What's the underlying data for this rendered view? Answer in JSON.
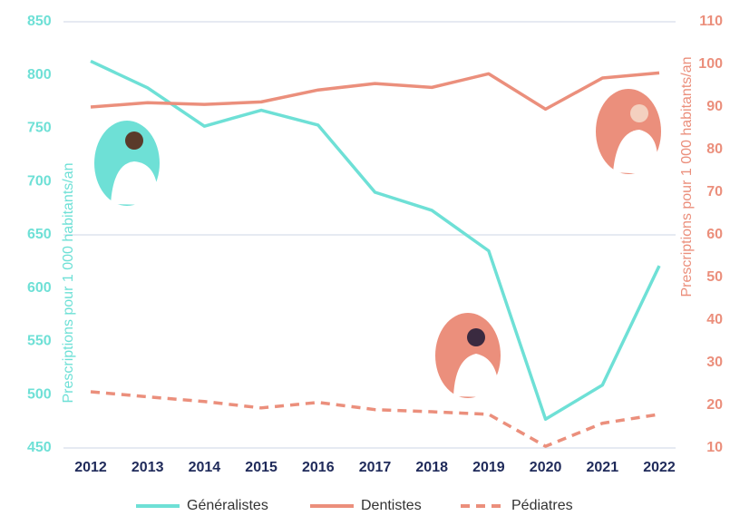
{
  "chart_data": {
    "type": "line",
    "categories": [
      "2012",
      "2013",
      "2014",
      "2015",
      "2016",
      "2017",
      "2018",
      "2019",
      "2020",
      "2021",
      "2022"
    ],
    "y_label": "Prescriptions pour 1 000 habitants/an",
    "y2_label": "Prescriptions pour 1 000 habitants/an",
    "ylim": [
      450,
      850
    ],
    "yticks": [
      450,
      500,
      550,
      600,
      650,
      700,
      750,
      800,
      850
    ],
    "y2lim": [
      10,
      110
    ],
    "y2ticks": [
      10,
      20,
      30,
      40,
      50,
      60,
      70,
      80,
      90,
      100,
      110
    ],
    "y_color": "#6ee0d6",
    "y2_color": "#eb8f7c",
    "series": [
      {
        "name": "Généralistes",
        "color": "#6ee0d6",
        "style": "solid",
        "values": [
          813,
          788,
          752,
          767,
          753,
          690,
          673,
          635,
          477,
          509,
          621
        ]
      },
      {
        "name": "Dentistes",
        "color": "#eb8f7c",
        "style": "solid",
        "axis": "y2",
        "values": [
          90,
          91,
          90.6,
          91.2,
          94,
          95.5,
          94.6,
          97.8,
          89.5,
          96.8,
          98
        ]
      },
      {
        "name": "Pédiatres",
        "color": "#eb8f7c",
        "style": "dashed",
        "axis": "y2",
        "values": [
          23.2,
          22,
          20.9,
          19.4,
          20.7,
          19,
          18.5,
          17.9,
          10.4,
          15.8,
          17.9
        ]
      }
    ]
  }
}
